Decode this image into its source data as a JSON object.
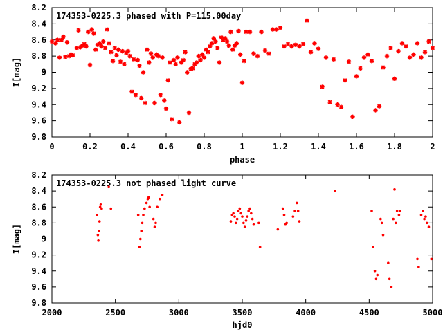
{
  "chart_data": [
    {
      "type": "scatter",
      "title": "174353-0225.3 phased with P=115.00day",
      "xlabel": "phase",
      "ylabel": "I[mag]",
      "xlim": [
        0,
        2
      ],
      "ylim": [
        8.2,
        9.8
      ],
      "y_inverted": true,
      "grid": false,
      "marker_color": "#ff0000",
      "marker": "star",
      "x_ticks": [
        "0",
        "0.2",
        "0.4",
        "0.6",
        "0.8",
        "1",
        "1.2",
        "1.4",
        "1.6",
        "1.8",
        "2"
      ],
      "x_tick_values": [
        0,
        0.2,
        0.4,
        0.6,
        0.8,
        1.0,
        1.2,
        1.4,
        1.6,
        1.8,
        2.0
      ],
      "y_ticks": [
        "8.2",
        "8.4",
        "8.6",
        "8.8",
        "9",
        "9.2",
        "9.4",
        "9.6",
        "9.8"
      ],
      "y_tick_values": [
        8.2,
        8.4,
        8.6,
        8.8,
        9.0,
        9.2,
        9.4,
        9.6,
        9.8
      ],
      "points": [
        [
          0.0,
          8.62
        ],
        [
          0.02,
          8.64
        ],
        [
          0.03,
          8.6
        ],
        [
          0.04,
          8.82
        ],
        [
          0.05,
          8.6
        ],
        [
          0.06,
          8.56
        ],
        [
          0.07,
          8.81
        ],
        [
          0.08,
          8.63
        ],
        [
          0.09,
          8.8
        ],
        [
          0.1,
          8.78
        ],
        [
          0.11,
          8.79
        ],
        [
          0.13,
          8.7
        ],
        [
          0.14,
          8.48
        ],
        [
          0.15,
          8.69
        ],
        [
          0.16,
          8.67
        ],
        [
          0.17,
          8.65
        ],
        [
          0.18,
          8.68
        ],
        [
          0.19,
          8.5
        ],
        [
          0.2,
          8.91
        ],
        [
          0.21,
          8.47
        ],
        [
          0.22,
          8.52
        ],
        [
          0.23,
          8.72
        ],
        [
          0.24,
          8.66
        ],
        [
          0.25,
          8.64
        ],
        [
          0.26,
          8.68
        ],
        [
          0.27,
          8.62
        ],
        [
          0.28,
          8.7
        ],
        [
          0.29,
          8.47
        ],
        [
          0.3,
          8.64
        ],
        [
          0.31,
          8.75
        ],
        [
          0.32,
          8.86
        ],
        [
          0.33,
          8.7
        ],
        [
          0.34,
          8.79
        ],
        [
          0.35,
          8.72
        ],
        [
          0.36,
          8.87
        ],
        [
          0.37,
          8.74
        ],
        [
          0.38,
          8.9
        ],
        [
          0.39,
          8.76
        ],
        [
          0.4,
          8.74
        ],
        [
          0.41,
          8.8
        ],
        [
          0.42,
          9.24
        ],
        [
          0.43,
          8.84
        ],
        [
          0.44,
          9.28
        ],
        [
          0.45,
          8.85
        ],
        [
          0.46,
          8.92
        ],
        [
          0.47,
          9.32
        ],
        [
          0.48,
          9.0
        ],
        [
          0.49,
          9.38
        ],
        [
          0.5,
          8.72
        ],
        [
          0.51,
          8.88
        ],
        [
          0.52,
          8.77
        ],
        [
          0.53,
          8.82
        ],
        [
          0.54,
          9.38
        ],
        [
          0.55,
          8.78
        ],
        [
          0.56,
          8.8
        ],
        [
          0.57,
          9.28
        ],
        [
          0.58,
          8.82
        ],
        [
          0.59,
          9.35
        ],
        [
          0.6,
          9.45
        ],
        [
          0.61,
          9.1
        ],
        [
          0.62,
          8.88
        ],
        [
          0.63,
          9.58
        ],
        [
          0.64,
          8.85
        ],
        [
          0.65,
          8.9
        ],
        [
          0.66,
          8.82
        ],
        [
          0.67,
          9.62
        ],
        [
          0.68,
          8.88
        ],
        [
          0.69,
          8.85
        ],
        [
          0.7,
          8.75
        ],
        [
          0.71,
          9.0
        ],
        [
          0.72,
          9.5
        ],
        [
          0.73,
          8.96
        ],
        [
          0.74,
          8.95
        ],
        [
          0.75,
          8.9
        ],
        [
          0.76,
          8.88
        ],
        [
          0.77,
          8.8
        ],
        [
          0.78,
          8.85
        ],
        [
          0.79,
          8.78
        ],
        [
          0.8,
          8.82
        ],
        [
          0.81,
          8.72
        ],
        [
          0.82,
          8.75
        ],
        [
          0.83,
          8.68
        ],
        [
          0.84,
          8.64
        ],
        [
          0.85,
          8.58
        ],
        [
          0.86,
          8.62
        ],
        [
          0.87,
          8.7
        ],
        [
          0.88,
          8.88
        ],
        [
          0.89,
          8.57
        ],
        [
          0.9,
          8.6
        ],
        [
          0.91,
          8.58
        ],
        [
          0.92,
          8.62
        ],
        [
          0.93,
          8.67
        ],
        [
          0.94,
          8.5
        ],
        [
          0.95,
          8.72
        ],
        [
          0.96,
          8.67
        ],
        [
          0.97,
          8.64
        ],
        [
          0.98,
          8.49
        ],
        [
          0.99,
          8.78
        ],
        [
          1.0,
          9.13
        ],
        [
          1.01,
          8.86
        ],
        [
          1.02,
          8.5
        ],
        [
          1.04,
          8.5
        ],
        [
          1.06,
          8.77
        ],
        [
          1.08,
          8.8
        ],
        [
          1.1,
          8.5
        ],
        [
          1.12,
          8.73
        ],
        [
          1.14,
          8.77
        ],
        [
          1.16,
          8.47
        ],
        [
          1.18,
          8.47
        ],
        [
          1.2,
          8.45
        ],
        [
          1.22,
          8.68
        ],
        [
          1.24,
          8.65
        ],
        [
          1.26,
          8.68
        ],
        [
          1.28,
          8.66
        ],
        [
          1.3,
          8.68
        ],
        [
          1.32,
          8.65
        ],
        [
          1.34,
          8.36
        ],
        [
          1.36,
          8.75
        ],
        [
          1.38,
          8.64
        ],
        [
          1.4,
          8.71
        ],
        [
          1.42,
          9.18
        ],
        [
          1.44,
          8.82
        ],
        [
          1.46,
          9.37
        ],
        [
          1.48,
          8.84
        ],
        [
          1.5,
          9.4
        ],
        [
          1.52,
          9.43
        ],
        [
          1.54,
          9.1
        ],
        [
          1.56,
          8.87
        ],
        [
          1.58,
          9.55
        ],
        [
          1.6,
          9.05
        ],
        [
          1.62,
          8.95
        ],
        [
          1.64,
          8.82
        ],
        [
          1.66,
          8.78
        ],
        [
          1.68,
          8.86
        ],
        [
          1.7,
          9.47
        ],
        [
          1.72,
          9.42
        ],
        [
          1.74,
          8.94
        ],
        [
          1.76,
          8.8
        ],
        [
          1.78,
          8.7
        ],
        [
          1.8,
          9.08
        ],
        [
          1.82,
          8.74
        ],
        [
          1.84,
          8.64
        ],
        [
          1.86,
          8.68
        ],
        [
          1.88,
          8.82
        ],
        [
          1.9,
          8.78
        ],
        [
          1.92,
          8.64
        ],
        [
          1.94,
          8.82
        ],
        [
          1.96,
          8.75
        ],
        [
          1.98,
          8.62
        ],
        [
          2.0,
          8.7
        ]
      ]
    },
    {
      "type": "scatter",
      "title": "174353-0225.3 not phased light curve",
      "xlabel": "hjd0",
      "ylabel": "I[mag]",
      "xlim": [
        2000,
        5000
      ],
      "ylim": [
        8.2,
        9.8
      ],
      "y_inverted": true,
      "grid": false,
      "marker_color": "#ff0000",
      "marker": "dot",
      "x_ticks": [
        "2000",
        "2500",
        "3000",
        "3500",
        "4000",
        "4500",
        "5000"
      ],
      "x_tick_values": [
        2000,
        2500,
        3000,
        3500,
        4000,
        4500,
        5000
      ],
      "y_ticks": [
        "8.2",
        "8.4",
        "8.6",
        "8.8",
        "9",
        "9.2",
        "9.4",
        "9.6",
        "9.8"
      ],
      "y_tick_values": [
        8.2,
        8.4,
        8.6,
        8.8,
        9.0,
        9.2,
        9.4,
        9.6,
        9.8
      ],
      "points": [
        [
          2355,
          8.7
        ],
        [
          2362,
          8.95
        ],
        [
          2366,
          9.02
        ],
        [
          2370,
          8.9
        ],
        [
          2375,
          8.78
        ],
        [
          2380,
          8.6
        ],
        [
          2385,
          8.57
        ],
        [
          2392,
          8.62
        ],
        [
          2448,
          8.35
        ],
        [
          2465,
          8.62
        ],
        [
          2680,
          8.7
        ],
        [
          2690,
          9.1
        ],
        [
          2697,
          9.0
        ],
        [
          2705,
          8.9
        ],
        [
          2712,
          8.8
        ],
        [
          2720,
          8.7
        ],
        [
          2730,
          8.62
        ],
        [
          2745,
          8.55
        ],
        [
          2755,
          8.5
        ],
        [
          2762,
          8.48
        ],
        [
          2770,
          8.6
        ],
        [
          2800,
          8.75
        ],
        [
          2810,
          8.85
        ],
        [
          2818,
          8.8
        ],
        [
          2830,
          8.6
        ],
        [
          2850,
          8.5
        ],
        [
          2870,
          8.45
        ],
        [
          3410,
          8.78
        ],
        [
          3420,
          8.7
        ],
        [
          3430,
          8.68
        ],
        [
          3440,
          8.72
        ],
        [
          3450,
          8.8
        ],
        [
          3460,
          8.75
        ],
        [
          3470,
          8.65
        ],
        [
          3480,
          8.62
        ],
        [
          3490,
          8.68
        ],
        [
          3500,
          8.72
        ],
        [
          3510,
          8.8
        ],
        [
          3520,
          8.85
        ],
        [
          3530,
          8.77
        ],
        [
          3540,
          8.72
        ],
        [
          3550,
          8.65
        ],
        [
          3560,
          8.62
        ],
        [
          3570,
          8.68
        ],
        [
          3580,
          8.75
        ],
        [
          3590,
          8.82
        ],
        [
          3630,
          8.8
        ],
        [
          3640,
          9.1
        ],
        [
          3780,
          8.88
        ],
        [
          3820,
          8.62
        ],
        [
          3830,
          8.7
        ],
        [
          3840,
          8.82
        ],
        [
          3850,
          8.8
        ],
        [
          3900,
          8.72
        ],
        [
          3915,
          8.65
        ],
        [
          3930,
          8.55
        ],
        [
          3940,
          8.65
        ],
        [
          3950,
          8.78
        ],
        [
          4230,
          8.4
        ],
        [
          4520,
          8.65
        ],
        [
          4530,
          9.1
        ],
        [
          4545,
          9.4
        ],
        [
          4555,
          9.5
        ],
        [
          4565,
          9.45
        ],
        [
          4590,
          8.75
        ],
        [
          4600,
          8.8
        ],
        [
          4610,
          8.95
        ],
        [
          4650,
          9.3
        ],
        [
          4660,
          9.5
        ],
        [
          4675,
          9.6
        ],
        [
          4690,
          8.75
        ],
        [
          4700,
          8.38
        ],
        [
          4710,
          8.8
        ],
        [
          4720,
          8.65
        ],
        [
          4735,
          8.7
        ],
        [
          4745,
          8.65
        ],
        [
          4880,
          9.25
        ],
        [
          4890,
          9.35
        ],
        [
          4910,
          8.7
        ],
        [
          4925,
          8.65
        ],
        [
          4935,
          8.75
        ],
        [
          4945,
          8.72
        ],
        [
          4955,
          8.8
        ],
        [
          4970,
          8.85
        ],
        [
          4990,
          9.25
        ]
      ]
    }
  ]
}
